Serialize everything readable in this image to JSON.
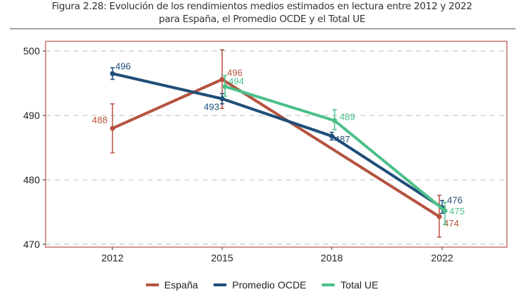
{
  "chart_data": {
    "type": "line",
    "title": "Figura 2.28: Evolución de los rendimientos medios estimados en lectura entre 2012 y 2022",
    "subtitle": "para España, el Promedio OCDE y el Total UE",
    "xlabel": "",
    "ylabel": "",
    "categories": [
      "2012",
      "2015",
      "2018",
      "2022"
    ],
    "ylim": [
      470,
      500
    ],
    "yticks": [
      470,
      480,
      490,
      500
    ],
    "grid": "horizontal dashed",
    "legend_position": "bottom",
    "series": [
      {
        "name": "España",
        "color": "#b5533f",
        "values": [
          488,
          495.6,
          null,
          474.3
        ],
        "ci_low": [
          484.2,
          491.1,
          null,
          471.1
        ],
        "ci_high": [
          491.8,
          500.2,
          null,
          477.6
        ],
        "labels": [
          "488",
          "496",
          "",
          "474"
        ]
      },
      {
        "name": "Promedio OCDE",
        "color": "#1f4e79",
        "values": [
          496.5,
          492.6,
          486.8,
          475.7
        ],
        "ci_low": [
          495.6,
          491.8,
          486.2,
          474.8
        ],
        "ci_high": [
          497.4,
          493.4,
          487.4,
          476.8
        ],
        "labels": [
          "496",
          "493",
          "487",
          "476"
        ]
      },
      {
        "name": "Total UE",
        "color": "#4cc08a",
        "values": [
          null,
          494.5,
          489.2,
          475.2
        ],
        "ci_low": [
          null,
          493.0,
          487.8,
          473.1
        ],
        "ci_high": [
          null,
          496.2,
          490.9,
          476.5
        ],
        "labels": [
          "",
          "494",
          "489",
          "475"
        ]
      }
    ]
  }
}
